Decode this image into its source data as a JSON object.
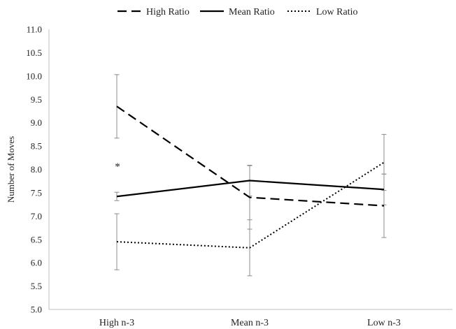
{
  "chart_data": {
    "type": "line",
    "categories": [
      "High n-3",
      "Mean n-3",
      "Low n-3"
    ],
    "series": [
      {
        "name": "High Ratio",
        "style": "dashed",
        "values": [
          9.35,
          7.4,
          7.22
        ],
        "error": [
          0.68,
          0.68,
          0.68
        ]
      },
      {
        "name": "Mean Ratio",
        "style": "solid",
        "values": [
          7.42,
          7.76,
          7.57
        ],
        "error": [
          0.09,
          0.33,
          0.33
        ]
      },
      {
        "name": "Low Ratio",
        "style": "dotted",
        "values": [
          6.45,
          6.32,
          8.15
        ],
        "error": [
          0.6,
          0.6,
          0.6
        ]
      }
    ],
    "title": "",
    "xlabel": "",
    "ylabel": "Number of Moves",
    "ylim": [
      5.0,
      11.0
    ],
    "yticks": [
      "5.0",
      "5.5",
      "6.0",
      "6.5",
      "7.0",
      "7.5",
      "8.0",
      "8.5",
      "9.0",
      "9.5",
      "10.0",
      "10.5",
      "11.0"
    ],
    "grid": false,
    "legend_position": "top-center",
    "annotations": [
      {
        "text": "*",
        "category": "High n-3",
        "y": 8.1
      }
    ],
    "line_color": "#000000",
    "errorbar_color": "#8c8c8c"
  }
}
